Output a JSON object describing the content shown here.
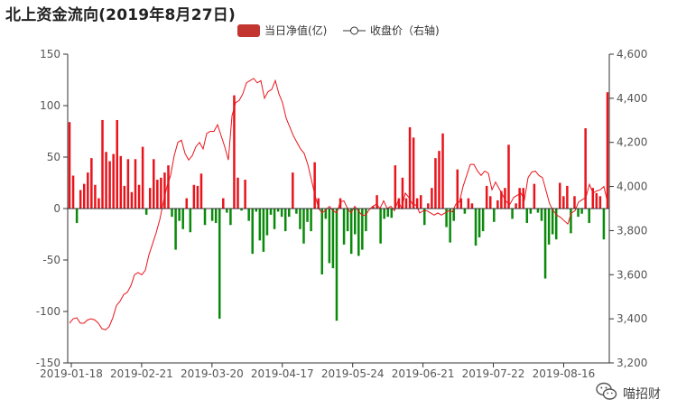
{
  "title": "北上资金流向(2019年8月27日)",
  "watermark": {
    "text": "喵招财",
    "icon": "wechat-icon"
  },
  "colors": {
    "positive": "#e8141c",
    "negative": "#0a8a0a",
    "price_line": "#e8141c",
    "axis": "#333333",
    "legend_bar": "#c23531"
  },
  "chart_data": {
    "type": "bar+line",
    "title": "北上资金流向(2019年8月27日)",
    "legend": {
      "position": "top-center",
      "items": [
        "当日净值(亿)",
        "收盘价（右轴)"
      ]
    },
    "x_tick_labels": [
      "2019-01-18",
      "2019-02-21",
      "2019-03-20",
      "2019-04-17",
      "2019-05-24",
      "2019-06-21",
      "2019-07-22",
      "2019-08-16"
    ],
    "y_left": {
      "ticks": [
        150,
        100,
        50,
        0,
        -50,
        -100,
        -150
      ],
      "range": [
        -150,
        150
      ]
    },
    "y_right": {
      "ticks": [
        "4,600",
        "4,400",
        "4,200",
        "4,000",
        "3,800",
        "3,600",
        "3,400",
        "3,200"
      ],
      "range": [
        3200,
        4600
      ]
    },
    "series": [
      {
        "name": "当日净值(亿)",
        "type": "bar",
        "values": [
          84,
          32,
          -14,
          18,
          24,
          35,
          49,
          23,
          10,
          86,
          55,
          46,
          53,
          86,
          51,
          22,
          48,
          16,
          48,
          23,
          60,
          -6,
          20,
          48,
          28,
          30,
          35,
          42,
          -8,
          -40,
          -12,
          -20,
          10,
          -23,
          23,
          22,
          34,
          -16,
          0,
          -12,
          -14,
          -107,
          10,
          -4,
          -16,
          110,
          30,
          -2,
          28,
          -12,
          -44,
          -3,
          -31,
          -42,
          -26,
          -6,
          -20,
          -3,
          -8,
          -22,
          -8,
          35,
          -5,
          -20,
          -34,
          -13,
          -22,
          45,
          10,
          -64,
          -10,
          -53,
          -58,
          -109,
          10,
          -35,
          -22,
          -44,
          -25,
          -46,
          -40,
          -22,
          0,
          2,
          13,
          -34,
          -10,
          -8,
          -9,
          42,
          10,
          30,
          10,
          79,
          69,
          10,
          13,
          -16,
          5,
          20,
          49,
          56,
          73,
          -18,
          -33,
          -12,
          38,
          10,
          -5,
          10,
          5,
          -36,
          -28,
          -22,
          22,
          12,
          -13,
          8,
          17,
          20,
          62,
          -10,
          5,
          20,
          20,
          -14,
          -5,
          24,
          -4,
          -12,
          -68,
          -35,
          -25,
          -30,
          25,
          12,
          22,
          -24,
          12,
          -8,
          -5,
          78,
          -14,
          20,
          15,
          12,
          -30,
          113
        ]
      },
      {
        "name": "收盘价（右轴)",
        "type": "line",
        "values": [
          3380,
          3400,
          3405,
          3380,
          3380,
          3395,
          3400,
          3395,
          3380,
          3355,
          3350,
          3365,
          3405,
          3460,
          3480,
          3510,
          3520,
          3550,
          3600,
          3610,
          3600,
          3620,
          3690,
          3740,
          3790,
          3850,
          3930,
          4000,
          4050,
          4140,
          4200,
          4210,
          4150,
          4120,
          4140,
          4180,
          4200,
          4170,
          4240,
          4250,
          4250,
          4280,
          4230,
          4180,
          4120,
          4320,
          4380,
          4390,
          4420,
          4470,
          4480,
          4490,
          4470,
          4480,
          4400,
          4430,
          4440,
          4480,
          4420,
          4380,
          4310,
          4270,
          4230,
          4200,
          4170,
          4150,
          4100,
          4030,
          3960,
          3900,
          3880,
          3895,
          3910,
          3890,
          3880,
          3930,
          3935,
          3900,
          3880,
          3910,
          3890,
          3870,
          3870,
          3895,
          3910,
          3920,
          3900,
          3935,
          3900,
          3910,
          3890,
          3935,
          3900,
          3970,
          3950,
          3920,
          3915,
          3880,
          3890,
          3890,
          3880,
          3870,
          3880,
          3870,
          3880,
          3890,
          3885,
          3920,
          3930,
          4000,
          4050,
          4100,
          4100,
          4070,
          4050,
          4070,
          4060,
          3985,
          4020,
          3990,
          3960,
          3930,
          3920,
          3950,
          3960,
          3970,
          3940,
          4040,
          4065,
          4070,
          4050,
          4040,
          3980,
          3920,
          3890,
          3870,
          3860,
          3845,
          3830,
          3880,
          3890,
          3930,
          3940,
          3950,
          4010,
          3970,
          3980,
          3985,
          4000,
          3930
        ]
      }
    ]
  }
}
